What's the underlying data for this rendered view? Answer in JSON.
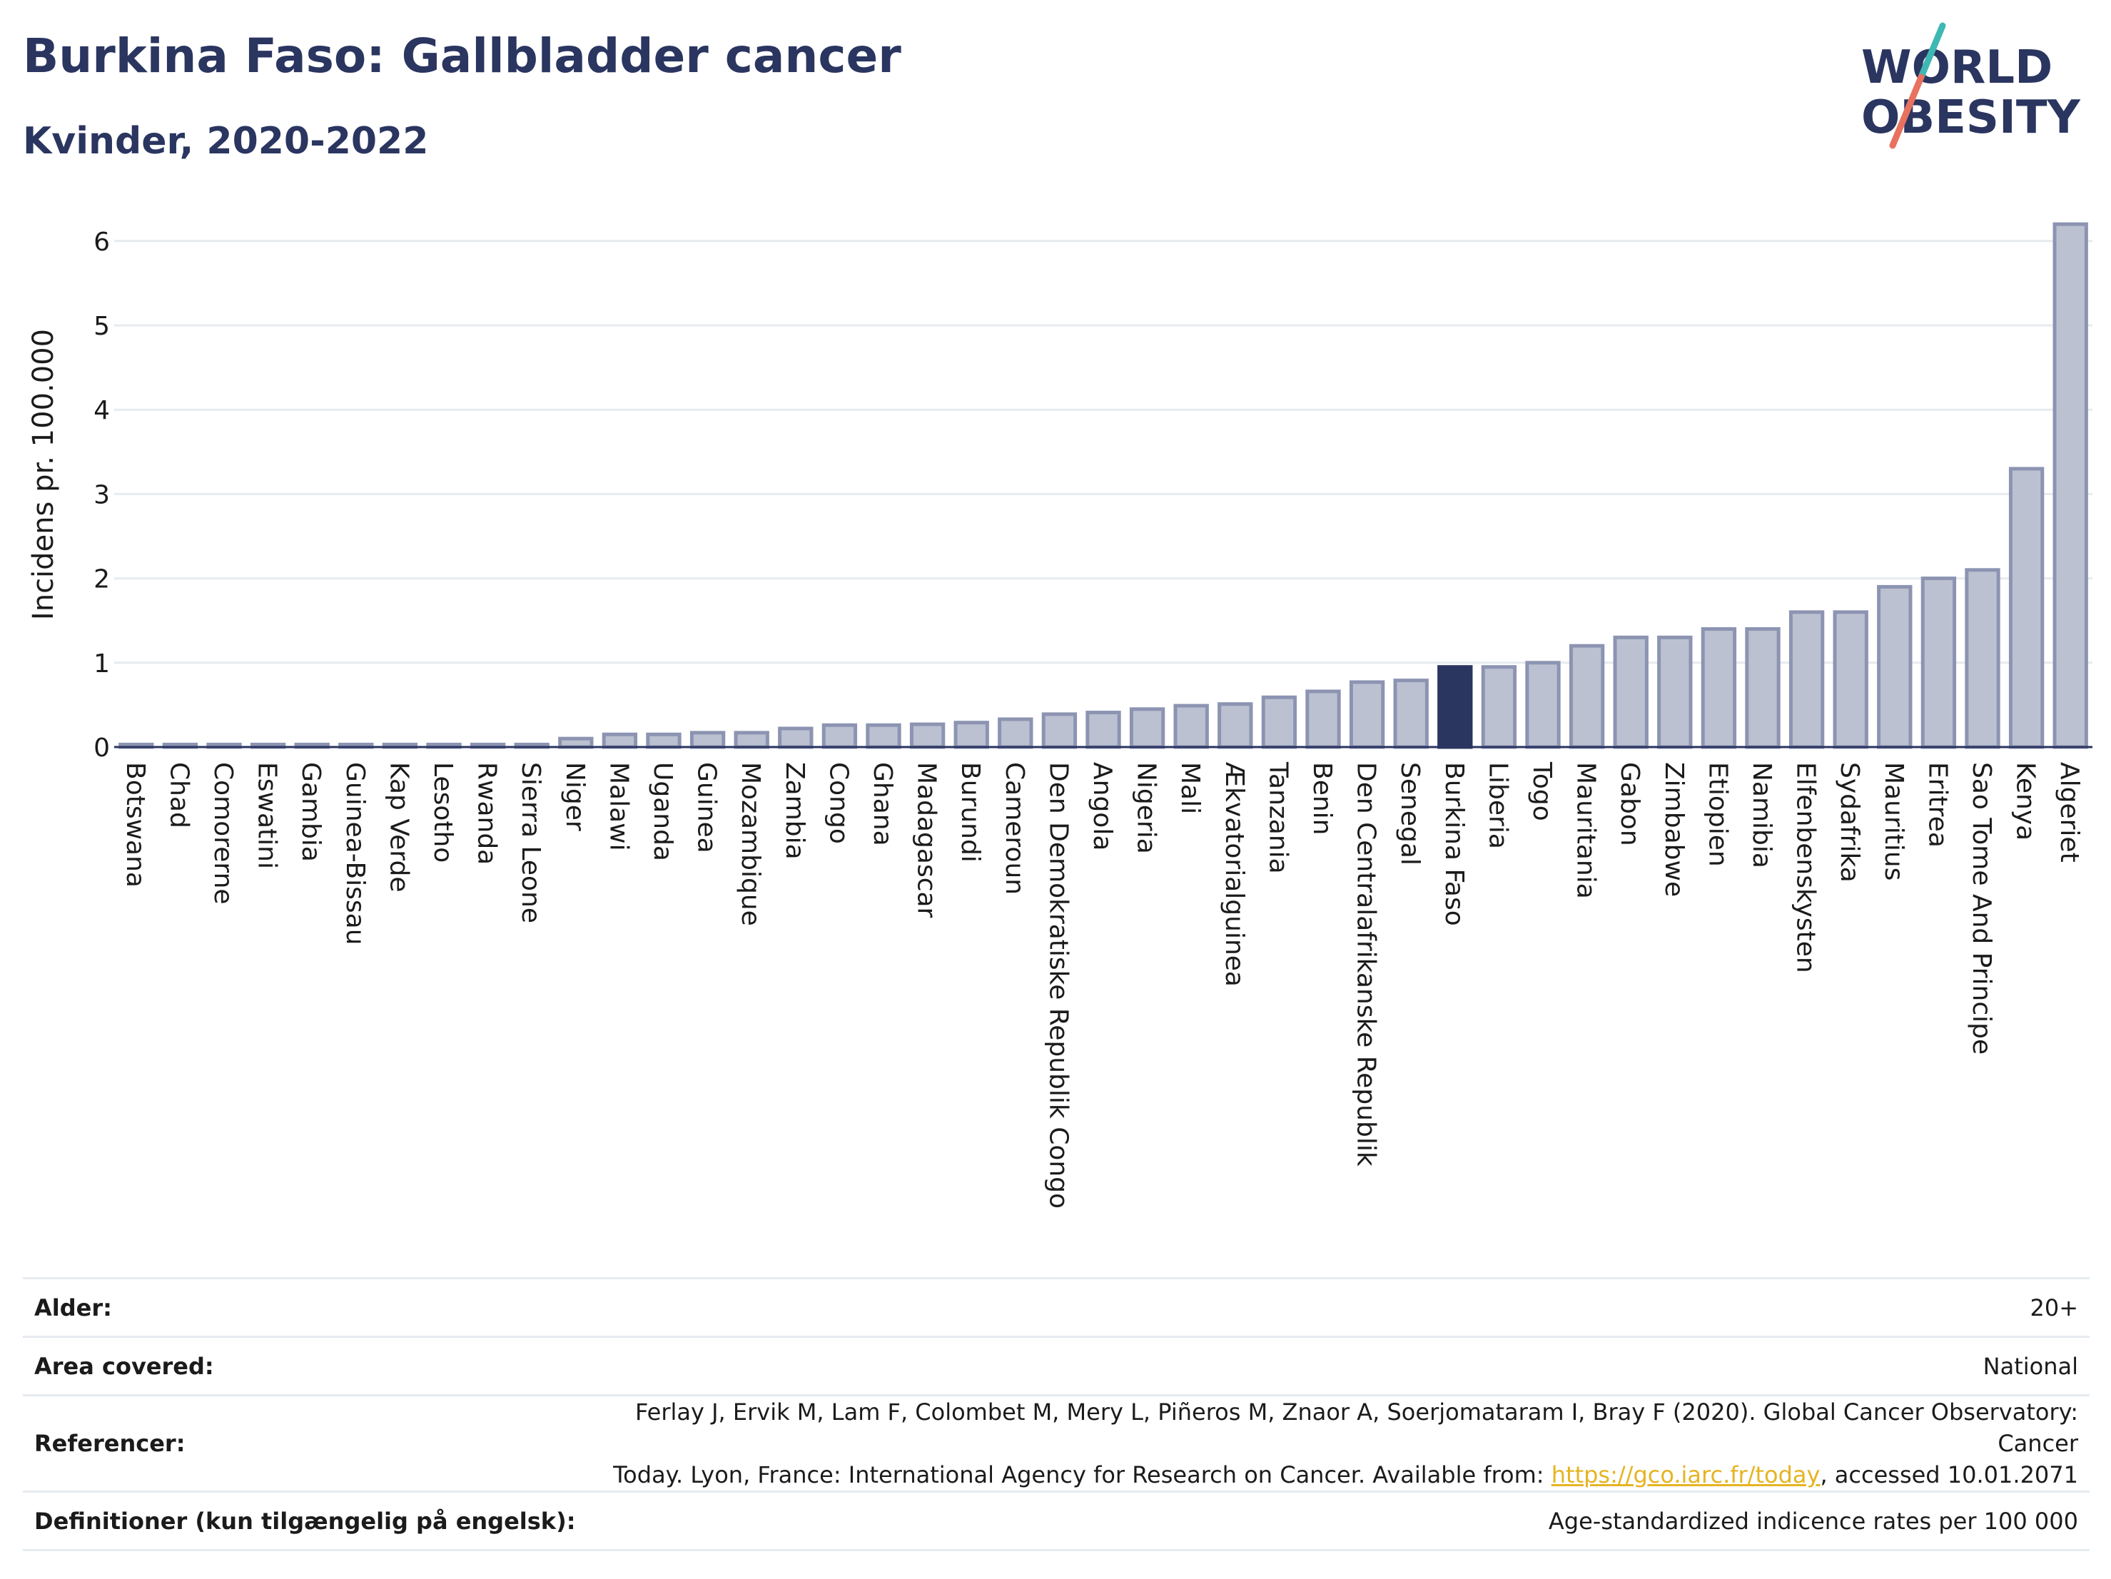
{
  "header": {
    "title": "Burkina Faso: Gallbladder cancer",
    "subtitle": "Kvinder, 2020-2022"
  },
  "logo": {
    "line1": "WORLD",
    "line2": "OBESITY",
    "accent_teal": "#3fb8b3",
    "accent_coral": "#e8715f",
    "text_color": "#2a3560"
  },
  "chart_data": {
    "type": "bar",
    "ylabel": "Incidens pr. 100.000",
    "xlabel": "",
    "ylim": [
      0,
      6.3
    ],
    "yticks": [
      0,
      1,
      2,
      3,
      4,
      5,
      6
    ],
    "grid": true,
    "highlight": "Burkina Faso",
    "colors": {
      "bar": "#bcc1d1",
      "bar_edge": "#8c94b2",
      "highlight": "#2a3560"
    },
    "categories": [
      "Botswana",
      "Chad",
      "Comorerne",
      "Eswatini",
      "Gambia",
      "Guinea-Bissau",
      "Kap Verde",
      "Lesotho",
      "Rwanda",
      "Sierra Leone",
      "Niger",
      "Malawi",
      "Uganda",
      "Guinea",
      "Mozambique",
      "Zambia",
      "Congo",
      "Ghana",
      "Madagascar",
      "Burundi",
      "Cameroun",
      "Den Demokratiske Republik Congo",
      "Angola",
      "Nigeria",
      "Mali",
      "Ækvatorialguinea",
      "Tanzania",
      "Benin",
      "Den Centralafrikanske Republik",
      "Senegal",
      "Burkina Faso",
      "Liberia",
      "Togo",
      "Mauritania",
      "Gabon",
      "Zimbabwe",
      "Etiopien",
      "Namibia",
      "Elfenbenskysten",
      "Sydafrika",
      "Mauritius",
      "Eritrea",
      "Sao Tome And Principe",
      "Kenya",
      "Algeriet"
    ],
    "values": [
      0.03,
      0.03,
      0.03,
      0.03,
      0.03,
      0.03,
      0.03,
      0.03,
      0.03,
      0.03,
      0.1,
      0.15,
      0.15,
      0.17,
      0.17,
      0.22,
      0.26,
      0.26,
      0.27,
      0.29,
      0.33,
      0.39,
      0.41,
      0.45,
      0.49,
      0.51,
      0.59,
      0.66,
      0.77,
      0.79,
      0.95,
      0.95,
      1.0,
      1.2,
      1.3,
      1.3,
      1.4,
      1.4,
      1.6,
      1.6,
      1.9,
      2.0,
      2.1,
      3.3,
      6.2
    ]
  },
  "info": {
    "rows": [
      {
        "label": "Alder:",
        "value": "20+"
      },
      {
        "label": "Area covered:",
        "value": "National"
      },
      {
        "label": "Referencer:",
        "value_line1": "Ferlay J, Ervik M, Lam F, Colombet M, Mery L, Piñeros M, Znaor A, Soerjomataram I, Bray F (2020). Global Cancer Observatory: Cancer",
        "value_line2_pre": "Today. Lyon, France: International Agency for Research on Cancer. Available from: ",
        "link": "https://gco.iarc.fr/today",
        "value_line2_post": ", accessed 10.01.2071"
      },
      {
        "label": "Definitioner (kun tilgængelig på engelsk):",
        "value": "Age-standardized indicence rates per 100 000"
      }
    ]
  }
}
